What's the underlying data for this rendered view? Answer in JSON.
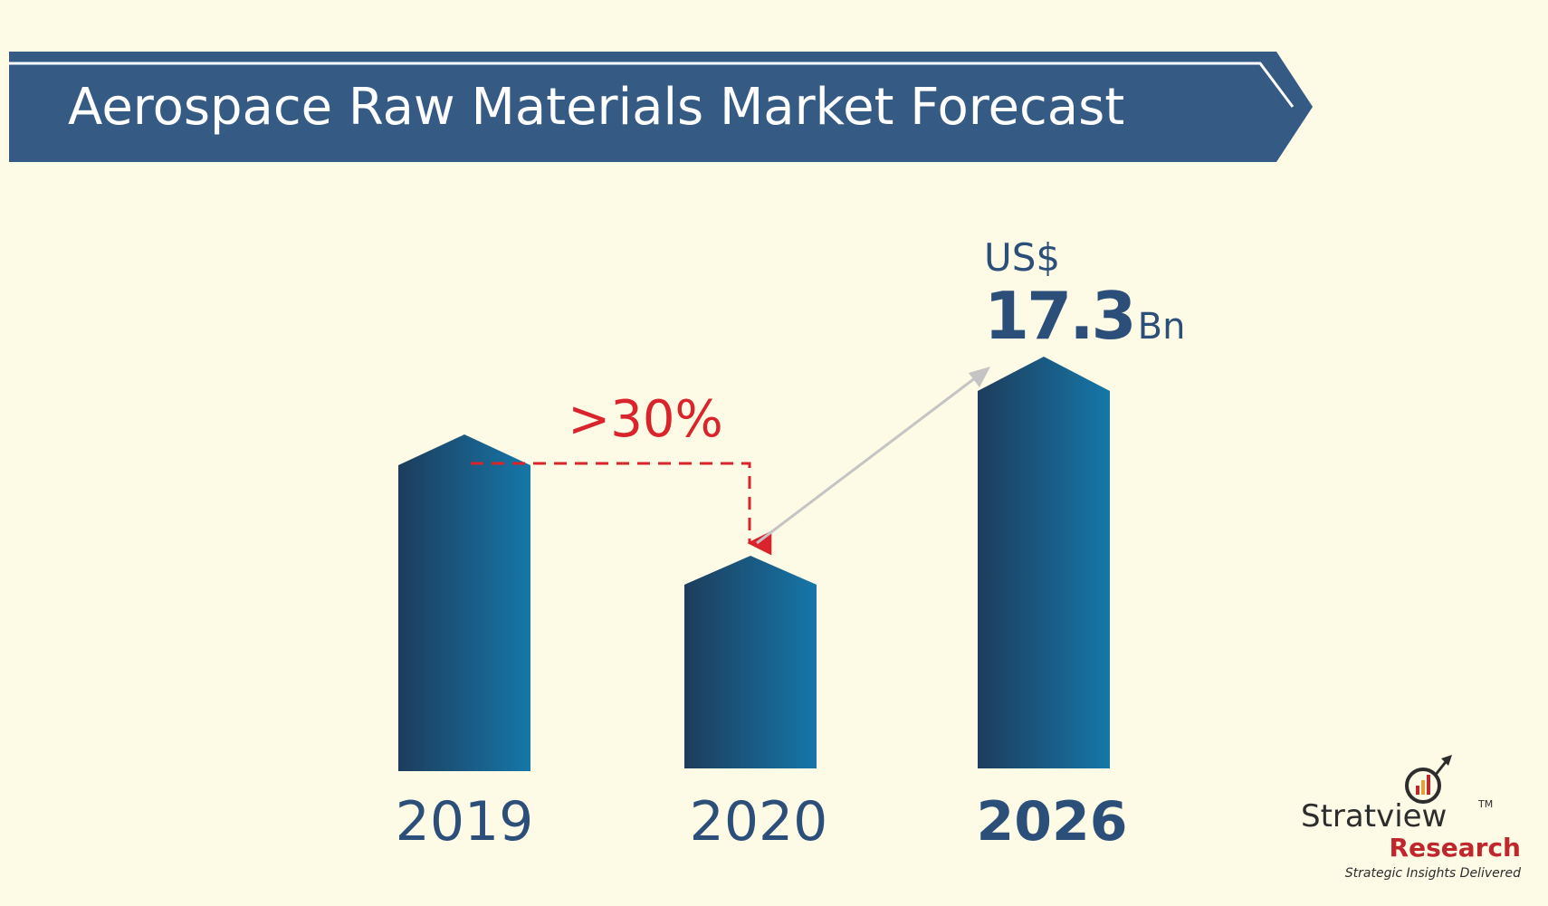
{
  "banner": {
    "title": "Aerospace Raw Materials Market Forecast"
  },
  "chart_data": {
    "type": "bar",
    "title": "Aerospace Raw Materials Market Forecast",
    "categories": [
      "2019",
      "2020",
      "2026"
    ],
    "values": [
      null,
      null,
      17.3
    ],
    "unit": "US$ Bn",
    "value_annotation": {
      "currency": "US$",
      "value": "17.3",
      "suffix": "Bn"
    },
    "change_annotation": {
      "label": ">30%",
      "from": "2019",
      "to": "2020"
    }
  },
  "brand": {
    "name_part1": "Strat",
    "name_part2": "iew",
    "tm": "TM",
    "name_part3": "Research",
    "tagline": "Strategic Insights Delivered"
  },
  "colors": {
    "background": "#fdfbe6",
    "banner": "#355a84",
    "bar_dark": "#1e3c5c",
    "bar_light": "#1577a8",
    "label": "#2c4f7a",
    "change": "#d9242b",
    "arrow": "#c4c4c4",
    "brand_red": "#c0272d"
  }
}
